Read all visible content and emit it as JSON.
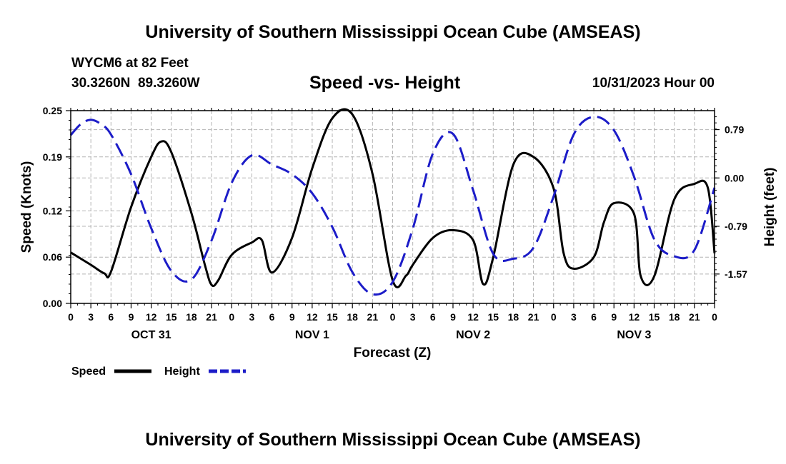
{
  "header": {
    "title": "University of Southern Mississippi Ocean Cube (AMSEAS)",
    "station": "WYCM6 at 82 Feet",
    "coords": "30.3260N  89.3260W",
    "subtitle": "Speed -vs- Height",
    "date": "10/31/2023 Hour 00"
  },
  "footer": {
    "title": "University of Southern Mississippi Ocean Cube (AMSEAS)"
  },
  "colors": {
    "speed": "#000000",
    "height": "#1c1cc8",
    "grid": "#b4b4b4"
  },
  "chart_data": {
    "type": "line",
    "title": "Speed -vs- Height",
    "xlabel": "Forecast (Z)",
    "ylabel": "Speed (Knots)",
    "y2label": "Height (feet)",
    "xlim": [
      0,
      96
    ],
    "ylim": [
      0,
      0.25
    ],
    "y2lim": [
      -2.05,
      1.1
    ],
    "grid": true,
    "x_ticks": [
      0,
      3,
      6,
      9,
      12,
      15,
      18,
      21,
      24,
      27,
      30,
      33,
      36,
      39,
      42,
      45,
      48,
      51,
      54,
      57,
      60,
      63,
      66,
      69,
      72,
      75,
      78,
      81,
      84,
      87,
      90,
      93,
      96
    ],
    "x_tick_labels": [
      "0",
      "3",
      "6",
      "9",
      "12",
      "15",
      "18",
      "21",
      "0",
      "3",
      "6",
      "9",
      "12",
      "15",
      "18",
      "21",
      "0",
      "3",
      "6",
      "9",
      "12",
      "15",
      "18",
      "21",
      "0",
      "3",
      "6",
      "9",
      "12",
      "15",
      "18",
      "21",
      "0"
    ],
    "day_labels": [
      {
        "text": "OCT 31",
        "x": 12
      },
      {
        "text": "NOV 1",
        "x": 36
      },
      {
        "text": "NOV 2",
        "x": 60
      },
      {
        "text": "NOV 3",
        "x": 84
      }
    ],
    "y_ticks": [
      0.0,
      0.06,
      0.12,
      0.19,
      0.25
    ],
    "y_tick_labels": [
      "0.00",
      "0.06",
      "0.12",
      "0.19",
      "0.25"
    ],
    "y2_ticks": [
      0.79,
      0.0,
      -0.79,
      -1.57
    ],
    "y2_tick_labels": [
      "0.79",
      "0.00",
      "-0.79",
      "-1.57"
    ],
    "legend": [
      {
        "name": "Speed",
        "style": "solid"
      },
      {
        "name": "Height",
        "style": "dashed"
      }
    ],
    "series": [
      {
        "name": "Speed",
        "axis": "left",
        "style": "solid",
        "x": [
          0,
          3,
          5,
          6,
          9,
          12,
          13.5,
          15,
          18,
          20,
          21,
          22,
          24,
          27,
          28.5,
          30,
          33,
          36,
          39,
          42,
          45,
          48,
          50,
          51,
          54,
          57,
          60,
          61.5,
          63,
          66,
          69,
          72,
          73.5,
          75,
          78,
          79.5,
          81,
          84,
          85,
          87,
          90,
          93,
          95,
          96
        ],
        "y": [
          0.066,
          0.05,
          0.039,
          0.041,
          0.125,
          0.19,
          0.21,
          0.196,
          0.117,
          0.05,
          0.024,
          0.03,
          0.063,
          0.079,
          0.082,
          0.04,
          0.085,
          0.175,
          0.24,
          0.245,
          0.168,
          0.03,
          0.036,
          0.05,
          0.085,
          0.095,
          0.082,
          0.025,
          0.06,
          0.18,
          0.19,
          0.149,
          0.065,
          0.045,
          0.06,
          0.105,
          0.13,
          0.116,
          0.035,
          0.035,
          0.135,
          0.155,
          0.15,
          0.065
        ]
      },
      {
        "name": "Height",
        "axis": "right",
        "style": "dashed",
        "x": [
          0,
          1.5,
          3,
          4.5,
          6,
          9,
          12,
          15,
          18,
          21,
          24,
          27,
          30,
          33,
          36,
          39,
          42,
          45,
          48,
          51,
          54,
          57,
          60,
          63,
          66,
          69,
          72,
          75,
          78,
          81,
          84,
          87,
          90,
          93,
          96
        ],
        "y": [
          0.7,
          0.88,
          0.95,
          0.88,
          0.71,
          0.06,
          -0.82,
          -1.52,
          -1.66,
          -1.02,
          -0.08,
          0.37,
          0.22,
          0.06,
          -0.25,
          -0.8,
          -1.54,
          -1.9,
          -1.7,
          -0.83,
          0.4,
          0.72,
          -0.2,
          -1.24,
          -1.32,
          -1.14,
          -0.3,
          0.71,
          1.0,
          0.78,
          0.02,
          -1.0,
          -1.28,
          -1.18,
          -0.16
        ]
      }
    ]
  }
}
